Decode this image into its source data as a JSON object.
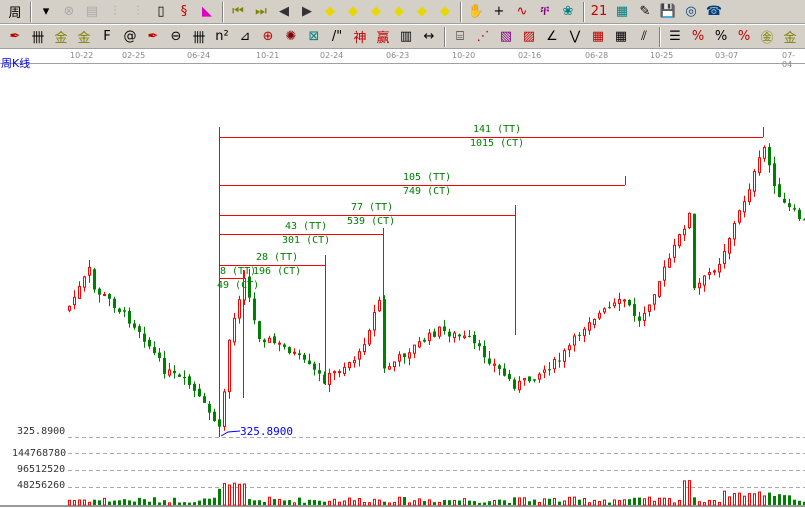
{
  "toolbar1": [
    {
      "name": "period-icon",
      "glyph": "周",
      "color": "#000"
    },
    {
      "name": "dropdown-icon",
      "glyph": "▾",
      "color": "#000"
    },
    {
      "name": "pattern-icon",
      "glyph": "⊗",
      "color": "#aaa"
    },
    {
      "name": "clipboard-icon",
      "glyph": "▤",
      "color": "#aaa"
    },
    {
      "name": "bars3-icon",
      "glyph": "⫶",
      "color": "#aaa"
    },
    {
      "name": "bars9-icon",
      "glyph": "⫶",
      "color": "#aaa"
    },
    {
      "name": "candle-type-icon",
      "glyph": "▯",
      "color": "#000"
    },
    {
      "name": "indicator-icon",
      "glyph": "§",
      "color": "#c00000"
    },
    {
      "name": "flag-icon",
      "glyph": "◣",
      "color": "#e000c0"
    },
    {
      "name": "first-icon",
      "glyph": "⏮",
      "color": "#808000"
    },
    {
      "name": "last-icon",
      "glyph": "⏭",
      "color": "#808000"
    },
    {
      "name": "prev-icon",
      "glyph": "◀",
      "color": "#333"
    },
    {
      "name": "next-icon",
      "glyph": "▶",
      "color": "#333"
    },
    {
      "name": "scroll-left-icon",
      "glyph": "◆",
      "color": "#e8d800"
    },
    {
      "name": "scroll-right-icon",
      "glyph": "◆",
      "color": "#e8d800"
    },
    {
      "name": "expand-icon",
      "glyph": "◆",
      "color": "#e8d800"
    },
    {
      "name": "shrink-icon",
      "glyph": "◆",
      "color": "#e8d800"
    },
    {
      "name": "zoom-in-icon",
      "glyph": "◆",
      "color": "#e8d800"
    },
    {
      "name": "zoom-out-icon",
      "glyph": "◆",
      "color": "#e8d800"
    },
    {
      "name": "hand-icon",
      "glyph": "✋",
      "color": "#000"
    },
    {
      "name": "crosshair-icon",
      "glyph": "+",
      "color": "#000"
    },
    {
      "name": "line-tool-icon",
      "glyph": "∿",
      "color": "#c00000"
    },
    {
      "name": "tower-icon",
      "glyph": "ቸ",
      "color": "#800080"
    },
    {
      "name": "brain-icon",
      "glyph": "❀",
      "color": "#008080"
    },
    {
      "name": "calendar-icon",
      "glyph": "21",
      "color": "#c00000"
    },
    {
      "name": "calculator-icon",
      "glyph": "▦",
      "color": "#008080"
    },
    {
      "name": "notes-icon",
      "glyph": "✎",
      "color": "#000"
    },
    {
      "name": "save-icon",
      "glyph": "💾",
      "color": "#000"
    },
    {
      "name": "globe-icon",
      "glyph": "◎",
      "color": "#004080"
    },
    {
      "name": "phone-icon",
      "glyph": "☎",
      "color": "#004080"
    }
  ],
  "toolbar2": [
    {
      "name": "pen-icon",
      "glyph": "✒",
      "color": "#c00000"
    },
    {
      "name": "hash-icon",
      "glyph": "卌",
      "color": "#000"
    },
    {
      "name": "gold1-icon",
      "glyph": "金",
      "color": "#808000"
    },
    {
      "name": "gold2-icon",
      "glyph": "金",
      "color": "#808000"
    },
    {
      "name": "f-icon",
      "glyph": "F",
      "color": "#000"
    },
    {
      "name": "spiral-icon",
      "glyph": "@",
      "color": "#000"
    },
    {
      "name": "pen2-icon",
      "glyph": "✒",
      "color": "#c00000"
    },
    {
      "name": "circle-icon",
      "glyph": "⊖",
      "color": "#000"
    },
    {
      "name": "lines-icon",
      "glyph": "卌",
      "color": "#000"
    },
    {
      "name": "n2-icon",
      "glyph": "n²",
      "color": "#000"
    },
    {
      "name": "angle-icon",
      "glyph": "⊿",
      "color": "#000"
    },
    {
      "name": "target-icon",
      "glyph": "⊕",
      "color": "#c00000"
    },
    {
      "name": "star-icon",
      "glyph": "✺",
      "color": "#800000"
    },
    {
      "name": "square-icon",
      "glyph": "⊠",
      "color": "#008080"
    },
    {
      "name": "quote-icon",
      "glyph": "/\"",
      "color": "#000"
    },
    {
      "name": "god-icon",
      "glyph": "神",
      "color": "#c00000"
    },
    {
      "name": "win-icon",
      "glyph": "赢",
      "color": "#c00000"
    },
    {
      "name": "ruler-icon",
      "glyph": "▥",
      "color": "#000"
    },
    {
      "name": "measure-icon",
      "glyph": "↔",
      "color": "#000"
    },
    {
      "name": "box-icon",
      "glyph": "⌸",
      "color": "#000"
    },
    {
      "name": "fan-icon",
      "glyph": "⋰",
      "color": "#c00000"
    },
    {
      "name": "gann-box-icon",
      "glyph": "▧",
      "color": "#800080"
    },
    {
      "name": "gann-fan-icon",
      "glyph": "▨",
      "color": "#c00000"
    },
    {
      "name": "speed-icon",
      "glyph": "∠",
      "color": "#000"
    },
    {
      "name": "wave-icon",
      "glyph": "⋁",
      "color": "#000"
    },
    {
      "name": "grid-icon",
      "glyph": "▦",
      "color": "#c00000"
    },
    {
      "name": "grid2-icon",
      "glyph": "▦",
      "color": "#000"
    },
    {
      "name": "parallel-icon",
      "glyph": "⫽",
      "color": "#000"
    },
    {
      "name": "list-icon",
      "glyph": "☰",
      "color": "#000"
    },
    {
      "name": "percent-red-icon",
      "glyph": "%",
      "color": "#c00000"
    },
    {
      "name": "percent-icon",
      "glyph": "%",
      "color": "#000"
    },
    {
      "name": "percent-lines-icon",
      "glyph": "%",
      "color": "#c00000"
    },
    {
      "name": "gold-circle-icon",
      "glyph": "㊎",
      "color": "#808000"
    },
    {
      "name": "gold-lines-icon",
      "glyph": "金",
      "color": "#808000"
    }
  ],
  "chart": {
    "period_label": "周K线",
    "dates": [
      "10-22",
      "02-25",
      "06-24",
      "10-21",
      "02-24",
      "06-23",
      "10-20",
      "02-16",
      "06-28",
      "10-25",
      "03-07",
      "07-04"
    ],
    "low_label": "325.8900",
    "low_marker": "325.8900",
    "volume_ticks": [
      "144768780",
      "96512520",
      "48256260"
    ],
    "annotations": [
      {
        "tt": "141 (TT)",
        "ct": "1015 (CT)"
      },
      {
        "tt": "105 (TT)",
        "ct": "749 (CT)"
      },
      {
        "tt": "77 (TT)",
        "ct": "539 (CT)"
      },
      {
        "tt": "43 (TT)",
        "ct": "301 (CT)"
      },
      {
        "tt": "28 (TT)",
        "ct": "196 (CT)"
      },
      {
        "tt": "8 (TT)",
        "ct": "49 (CT)"
      }
    ],
    "colors": {
      "up": "#ff0000",
      "down": "#008000",
      "annotation_line": "#ff0000",
      "annotation_text": "#008000",
      "low_marker": "#0000ff"
    }
  }
}
